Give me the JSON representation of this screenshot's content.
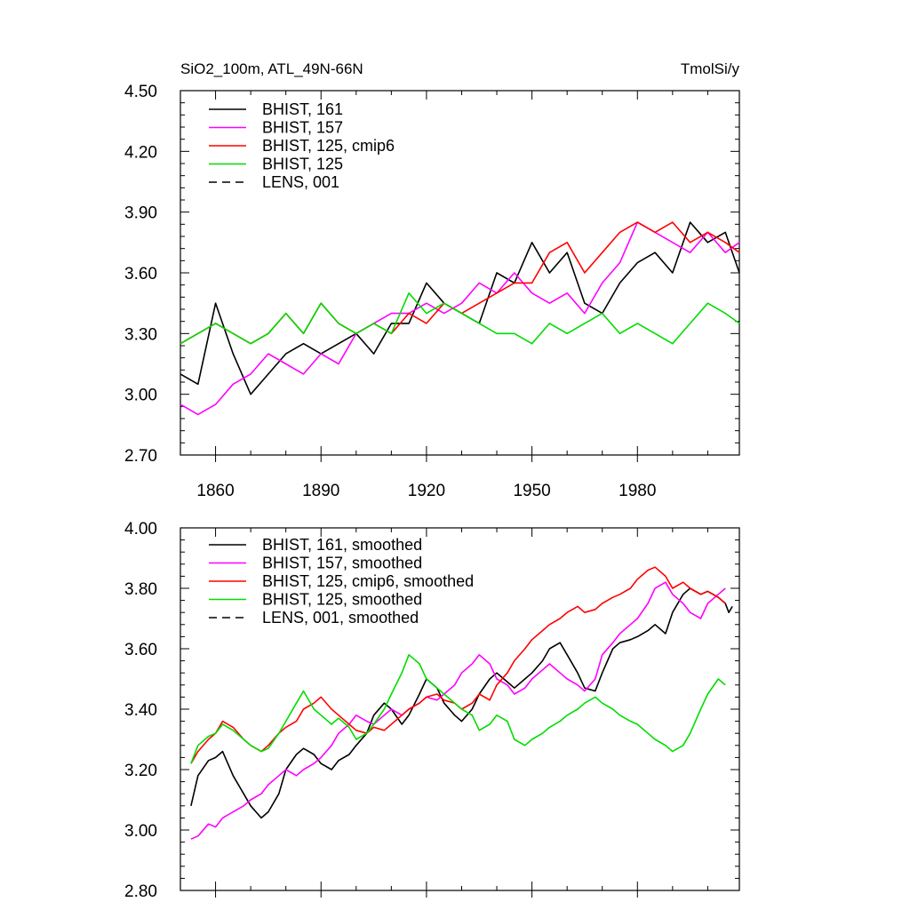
{
  "chart_data": [
    {
      "type": "line",
      "title_left": "SiO2_100m, ATL_49N-66N",
      "title_right": "TmolSi/y",
      "xlim": [
        1850,
        2009
      ],
      "xticks": [
        "1860",
        "1890",
        "1920",
        "1950",
        "1980"
      ],
      "ylim": [
        2.7,
        4.5
      ],
      "yticks": [
        "2.70",
        "3.00",
        "3.30",
        "3.60",
        "3.90",
        "4.20",
        "4.50"
      ],
      "grid": false,
      "legend_position": "top-left",
      "legend": [
        {
          "label": "BHIST, 161",
          "color": "#000000",
          "dash": "solid"
        },
        {
          "label": "BHIST, 157",
          "color": "#ff00ff",
          "dash": "solid"
        },
        {
          "label": "BHIST, 125, cmip6",
          "color": "#ff0000",
          "dash": "solid"
        },
        {
          "label": "BHIST, 125",
          "color": "#00dd00",
          "dash": "solid"
        },
        {
          "label": "LENS, 001",
          "color": "#000000",
          "dash": "dashed"
        }
      ],
      "series": [
        {
          "name": "BHIST, 161",
          "color": "#000000",
          "x": [
            1850,
            1855,
            1860,
            1865,
            1870,
            1875,
            1880,
            1885,
            1890,
            1895,
            1900,
            1905,
            1910,
            1915,
            1920,
            1925,
            1930,
            1935,
            1940,
            1945,
            1950,
            1955,
            1960,
            1965,
            1970,
            1975,
            1980,
            1985,
            1990,
            1995,
            2000,
            2005,
            2009
          ],
          "y": [
            3.1,
            3.05,
            3.45,
            3.2,
            3.0,
            3.1,
            3.2,
            3.25,
            3.2,
            3.25,
            3.3,
            3.2,
            3.35,
            3.35,
            3.55,
            3.45,
            3.4,
            3.35,
            3.6,
            3.55,
            3.75,
            3.6,
            3.7,
            3.45,
            3.4,
            3.55,
            3.65,
            3.7,
            3.6,
            3.85,
            3.75,
            3.8,
            3.6
          ]
        },
        {
          "name": "BHIST, 157",
          "color": "#ff00ff",
          "x": [
            1850,
            1855,
            1860,
            1865,
            1870,
            1875,
            1880,
            1885,
            1890,
            1895,
            1900,
            1905,
            1910,
            1915,
            1920,
            1925,
            1930,
            1935,
            1940,
            1945,
            1950,
            1955,
            1960,
            1965,
            1970,
            1975,
            1980,
            1985,
            1990,
            1995,
            2000,
            2005,
            2009
          ],
          "y": [
            2.95,
            2.9,
            2.95,
            3.05,
            3.1,
            3.2,
            3.15,
            3.1,
            3.2,
            3.15,
            3.3,
            3.35,
            3.4,
            3.4,
            3.45,
            3.4,
            3.45,
            3.55,
            3.5,
            3.6,
            3.5,
            3.45,
            3.5,
            3.4,
            3.55,
            3.65,
            3.85,
            3.8,
            3.75,
            3.7,
            3.8,
            3.7,
            3.75
          ]
        },
        {
          "name": "BHIST, 125, cmip6",
          "color": "#ff0000",
          "x": [
            1850,
            1855,
            1860,
            1865,
            1870,
            1875,
            1880,
            1885,
            1890,
            1895,
            1900,
            1905,
            1910,
            1915,
            1920,
            1925,
            1930,
            1935,
            1940,
            1945,
            1950,
            1955,
            1960,
            1965,
            1970,
            1975,
            1980,
            1985,
            1990,
            1995,
            2000,
            2005,
            2009
          ],
          "y": [
            3.25,
            3.3,
            3.35,
            3.3,
            3.25,
            3.3,
            3.4,
            3.3,
            3.45,
            3.35,
            3.3,
            3.35,
            3.3,
            3.4,
            3.35,
            3.45,
            3.4,
            3.45,
            3.5,
            3.55,
            3.55,
            3.7,
            3.75,
            3.6,
            3.7,
            3.8,
            3.85,
            3.8,
            3.85,
            3.75,
            3.8,
            3.75,
            3.7
          ]
        },
        {
          "name": "BHIST, 125",
          "color": "#00dd00",
          "x": [
            1850,
            1855,
            1860,
            1865,
            1870,
            1875,
            1880,
            1885,
            1890,
            1895,
            1900,
            1905,
            1910,
            1915,
            1920,
            1925,
            1930,
            1935,
            1940,
            1945,
            1950,
            1955,
            1960,
            1965,
            1970,
            1975,
            1980,
            1985,
            1990,
            1995,
            2000,
            2005,
            2009
          ],
          "y": [
            3.25,
            3.3,
            3.35,
            3.3,
            3.25,
            3.3,
            3.4,
            3.3,
            3.45,
            3.35,
            3.3,
            3.35,
            3.3,
            3.5,
            3.4,
            3.45,
            3.4,
            3.35,
            3.3,
            3.3,
            3.25,
            3.35,
            3.3,
            3.35,
            3.4,
            3.3,
            3.35,
            3.3,
            3.25,
            3.35,
            3.45,
            3.4,
            3.35
          ]
        }
      ]
    },
    {
      "type": "line",
      "xlim": [
        1850,
        2009
      ],
      "xticks": [
        "",
        "",
        "",
        "",
        ""
      ],
      "ylim": [
        2.8,
        4.0
      ],
      "yticks": [
        "2.80",
        "3.00",
        "3.20",
        "3.40",
        "3.60",
        "3.80",
        "4.00"
      ],
      "grid": false,
      "legend_position": "top-left",
      "legend": [
        {
          "label": "BHIST, 161, smoothed",
          "color": "#000000",
          "dash": "solid"
        },
        {
          "label": "BHIST, 157, smoothed",
          "color": "#ff00ff",
          "dash": "solid"
        },
        {
          "label": "BHIST, 125, cmip6, smoothed",
          "color": "#ff0000",
          "dash": "solid"
        },
        {
          "label": "BHIST, 125, smoothed",
          "color": "#00dd00",
          "dash": "solid"
        },
        {
          "label": "LENS, 001, smoothed",
          "color": "#000000",
          "dash": "dashed"
        }
      ],
      "series": [
        {
          "name": "BHIST, 161, smoothed",
          "color": "#000000",
          "x": [
            1853,
            1855,
            1858,
            1860,
            1862,
            1865,
            1868,
            1870,
            1873,
            1875,
            1878,
            1880,
            1883,
            1885,
            1888,
            1890,
            1893,
            1895,
            1898,
            1900,
            1903,
            1905,
            1908,
            1910,
            1913,
            1915,
            1918,
            1920,
            1923,
            1925,
            1928,
            1930,
            1933,
            1935,
            1938,
            1940,
            1943,
            1945,
            1948,
            1950,
            1953,
            1955,
            1958,
            1960,
            1963,
            1965,
            1968,
            1970,
            1973,
            1975,
            1978,
            1980,
            1983,
            1985,
            1988,
            1990,
            1993,
            1995,
            1998,
            2000,
            2003,
            2005,
            2006,
            2007
          ],
          "y": [
            3.08,
            3.18,
            3.23,
            3.24,
            3.26,
            3.18,
            3.12,
            3.08,
            3.04,
            3.06,
            3.12,
            3.2,
            3.25,
            3.27,
            3.25,
            3.22,
            3.2,
            3.23,
            3.25,
            3.28,
            3.32,
            3.38,
            3.42,
            3.4,
            3.35,
            3.38,
            3.45,
            3.5,
            3.47,
            3.42,
            3.38,
            3.36,
            3.4,
            3.45,
            3.5,
            3.52,
            3.49,
            3.47,
            3.5,
            3.52,
            3.56,
            3.6,
            3.62,
            3.58,
            3.52,
            3.47,
            3.46,
            3.52,
            3.6,
            3.62,
            3.63,
            3.64,
            3.66,
            3.68,
            3.65,
            3.72,
            3.78,
            3.8,
            3.78,
            3.79,
            3.77,
            3.75,
            3.72,
            3.74
          ]
        },
        {
          "name": "BHIST, 157, smoothed",
          "color": "#ff00ff",
          "x": [
            1853,
            1855,
            1858,
            1860,
            1862,
            1865,
            1868,
            1870,
            1873,
            1875,
            1878,
            1880,
            1883,
            1885,
            1888,
            1890,
            1893,
            1895,
            1898,
            1900,
            1903,
            1905,
            1908,
            1910,
            1913,
            1915,
            1918,
            1920,
            1923,
            1925,
            1928,
            1930,
            1933,
            1935,
            1938,
            1940,
            1943,
            1945,
            1948,
            1950,
            1953,
            1955,
            1958,
            1960,
            1963,
            1965,
            1968,
            1970,
            1973,
            1975,
            1978,
            1980,
            1983,
            1985,
            1988,
            1990,
            1993,
            1995,
            1998,
            2000,
            2003,
            2005
          ],
          "y": [
            2.97,
            2.98,
            3.02,
            3.01,
            3.04,
            3.06,
            3.08,
            3.1,
            3.12,
            3.15,
            3.18,
            3.2,
            3.18,
            3.2,
            3.22,
            3.24,
            3.28,
            3.32,
            3.35,
            3.38,
            3.36,
            3.35,
            3.38,
            3.4,
            3.38,
            3.4,
            3.42,
            3.44,
            3.43,
            3.45,
            3.48,
            3.52,
            3.55,
            3.58,
            3.55,
            3.5,
            3.48,
            3.45,
            3.47,
            3.5,
            3.53,
            3.55,
            3.52,
            3.5,
            3.48,
            3.46,
            3.5,
            3.58,
            3.62,
            3.65,
            3.68,
            3.7,
            3.75,
            3.8,
            3.82,
            3.78,
            3.75,
            3.72,
            3.7,
            3.75,
            3.78,
            3.8
          ]
        },
        {
          "name": "BHIST, 125, cmip6, smoothed",
          "color": "#ff0000",
          "x": [
            1853,
            1855,
            1858,
            1860,
            1862,
            1865,
            1868,
            1870,
            1873,
            1875,
            1878,
            1880,
            1883,
            1885,
            1888,
            1890,
            1893,
            1895,
            1898,
            1900,
            1903,
            1905,
            1908,
            1910,
            1913,
            1915,
            1918,
            1920,
            1923,
            1925,
            1928,
            1930,
            1933,
            1935,
            1938,
            1940,
            1943,
            1945,
            1948,
            1950,
            1953,
            1955,
            1958,
            1960,
            1963,
            1965,
            1968,
            1970,
            1973,
            1975,
            1978,
            1980,
            1983,
            1985,
            1988,
            1990,
            1993,
            1995,
            1998,
            2000,
            2003,
            2005
          ],
          "y": [
            3.22,
            3.26,
            3.3,
            3.32,
            3.36,
            3.34,
            3.3,
            3.28,
            3.26,
            3.28,
            3.32,
            3.34,
            3.36,
            3.4,
            3.42,
            3.44,
            3.4,
            3.38,
            3.35,
            3.33,
            3.32,
            3.34,
            3.33,
            3.35,
            3.38,
            3.4,
            3.42,
            3.44,
            3.45,
            3.43,
            3.42,
            3.4,
            3.42,
            3.45,
            3.43,
            3.48,
            3.52,
            3.56,
            3.6,
            3.63,
            3.66,
            3.68,
            3.7,
            3.72,
            3.74,
            3.72,
            3.73,
            3.75,
            3.77,
            3.78,
            3.8,
            3.83,
            3.86,
            3.87,
            3.84,
            3.8,
            3.82,
            3.8,
            3.78,
            3.79,
            3.77,
            3.75
          ]
        },
        {
          "name": "BHIST, 125, smoothed",
          "color": "#00dd00",
          "x": [
            1853,
            1855,
            1858,
            1860,
            1862,
            1865,
            1868,
            1870,
            1873,
            1875,
            1878,
            1880,
            1883,
            1885,
            1888,
            1890,
            1893,
            1895,
            1898,
            1900,
            1903,
            1905,
            1908,
            1910,
            1913,
            1915,
            1918,
            1920,
            1923,
            1925,
            1928,
            1930,
            1933,
            1935,
            1938,
            1940,
            1943,
            1945,
            1948,
            1950,
            1953,
            1955,
            1958,
            1960,
            1963,
            1965,
            1968,
            1970,
            1973,
            1975,
            1978,
            1980,
            1983,
            1985,
            1988,
            1990,
            1993,
            1995,
            1998,
            2000,
            2003,
            2005
          ],
          "y": [
            3.22,
            3.28,
            3.31,
            3.32,
            3.35,
            3.33,
            3.3,
            3.28,
            3.26,
            3.27,
            3.32,
            3.36,
            3.42,
            3.46,
            3.4,
            3.38,
            3.35,
            3.37,
            3.34,
            3.3,
            3.32,
            3.35,
            3.4,
            3.45,
            3.52,
            3.58,
            3.55,
            3.5,
            3.47,
            3.45,
            3.42,
            3.4,
            3.38,
            3.33,
            3.35,
            3.38,
            3.36,
            3.3,
            3.28,
            3.3,
            3.32,
            3.34,
            3.36,
            3.38,
            3.4,
            3.42,
            3.44,
            3.42,
            3.4,
            3.38,
            3.36,
            3.35,
            3.32,
            3.3,
            3.28,
            3.26,
            3.28,
            3.32,
            3.4,
            3.45,
            3.5,
            3.48
          ]
        }
      ]
    }
  ]
}
